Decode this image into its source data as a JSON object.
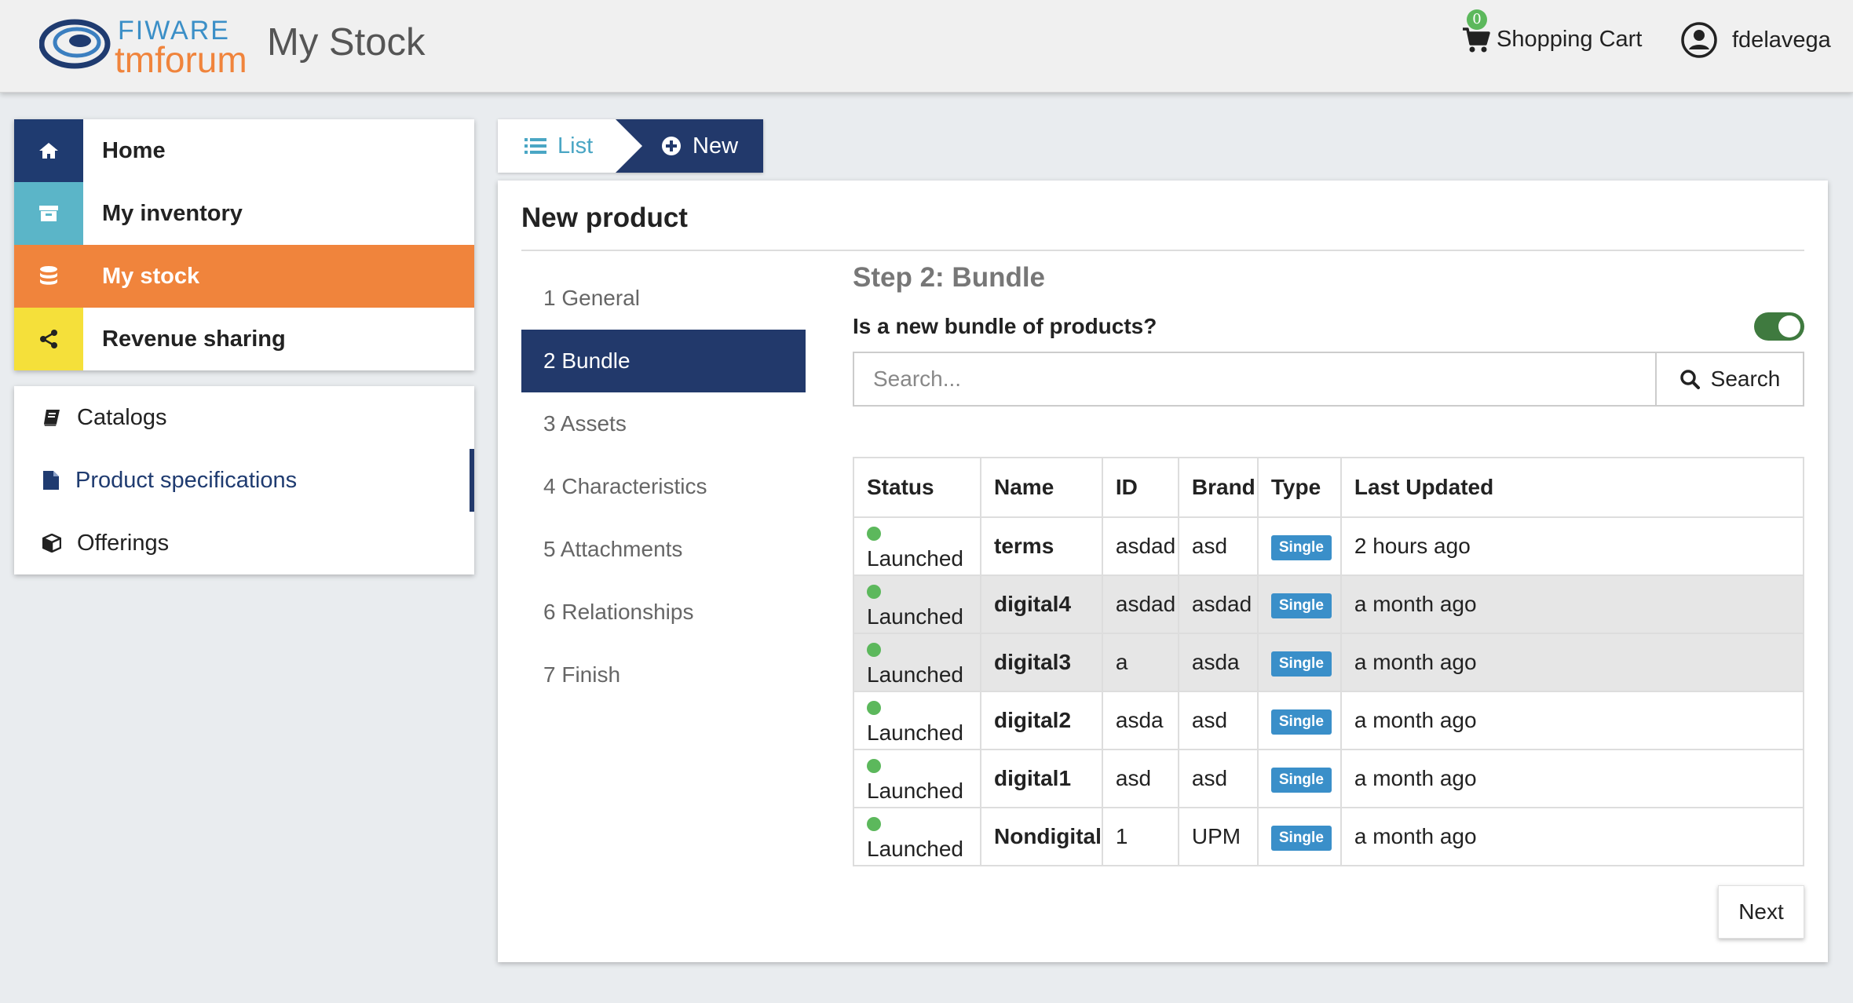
{
  "header": {
    "logo_top": "FIWARE",
    "logo_bottom": "tmforum",
    "app_title": "My Stock",
    "cart_count": "0",
    "cart_label": "Shopping Cart",
    "username": "fdelavega"
  },
  "nav": {
    "main": [
      {
        "label": "Home",
        "icon": "home-icon",
        "color": "#1f3b70"
      },
      {
        "label": "My inventory",
        "icon": "archive-icon",
        "color": "#5bb5c8"
      },
      {
        "label": "My stock",
        "icon": "database-icon",
        "color": "#f0843c"
      },
      {
        "label": "Revenue sharing",
        "icon": "share-icon",
        "color": "#f5e03a"
      }
    ],
    "sub": [
      {
        "label": "Catalogs",
        "icon": "book-icon"
      },
      {
        "label": "Product specifications",
        "icon": "file-icon"
      },
      {
        "label": "Offerings",
        "icon": "cube-icon"
      }
    ]
  },
  "tabs": {
    "list_label": "List",
    "new_label": "New"
  },
  "panel": {
    "title": "New product",
    "steps": [
      "1 General",
      "2 Bundle",
      "3 Assets",
      "4 Characteristics",
      "5 Attachments",
      "6 Relationships",
      "7 Finish"
    ],
    "step_title": "Step 2: Bundle",
    "bundle_question": "Is a new bundle of products?",
    "search_placeholder": "Search...",
    "search_label": "Search",
    "next_label": "Next"
  },
  "table": {
    "headers": [
      "Status",
      "Name",
      "ID",
      "Brand",
      "Type",
      "Last Updated"
    ],
    "rows": [
      {
        "status": "Launched",
        "name": "terms",
        "id": "asdad",
        "brand": "asd",
        "type": "Single",
        "updated": "2 hours ago"
      },
      {
        "status": "Launched",
        "name": "digital4",
        "id": "asdad",
        "brand": "asdad",
        "type": "Single",
        "updated": "a month ago"
      },
      {
        "status": "Launched",
        "name": "digital3",
        "id": "a",
        "brand": "asda",
        "type": "Single",
        "updated": "a month ago"
      },
      {
        "status": "Launched",
        "name": "digital2",
        "id": "asda",
        "brand": "asd",
        "type": "Single",
        "updated": "a month ago"
      },
      {
        "status": "Launched",
        "name": "digital1",
        "id": "asd",
        "brand": "asd",
        "type": "Single",
        "updated": "a month ago"
      },
      {
        "status": "Launched",
        "name": "Nondigital",
        "id": "1",
        "brand": "UPM",
        "type": "Single",
        "updated": "a month ago"
      }
    ]
  }
}
